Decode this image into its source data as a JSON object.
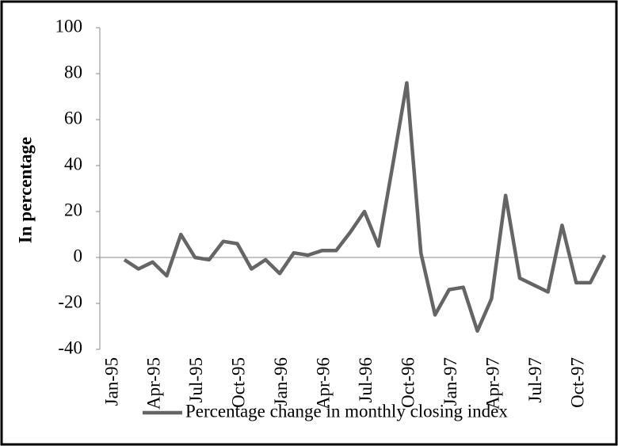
{
  "chart_data": {
    "type": "line",
    "y_label": "In percentage",
    "categories": [
      "Jan-95",
      null,
      null,
      "Apr-95",
      null,
      null,
      "Jul-95",
      null,
      null,
      "Oct-95",
      null,
      null,
      "Jan-96",
      null,
      null,
      "Apr-96",
      null,
      null,
      "Jul-96",
      null,
      null,
      "Oct-96",
      null,
      null,
      "Jan-97",
      null,
      null,
      "Apr-97",
      null,
      null,
      "Jul-97",
      null,
      null,
      "Oct-97",
      null
    ],
    "series": [
      {
        "name": "Percentage change in monthly closing index",
        "color": "#656565",
        "values": [
          -1,
          -5,
          -2,
          -8,
          10,
          0,
          -1,
          7,
          6,
          -5,
          -1,
          -7,
          2,
          1,
          3,
          3,
          11,
          20,
          5,
          40,
          76,
          2,
          -25,
          -14,
          -13,
          -32,
          -18,
          27,
          -9,
          -12,
          -15,
          14,
          -11,
          -11,
          1
        ]
      }
    ],
    "ylim": [
      -40,
      100
    ],
    "yticks": [
      -40,
      -20,
      0,
      20,
      40,
      60,
      80,
      100
    ],
    "legend": "bottom"
  }
}
